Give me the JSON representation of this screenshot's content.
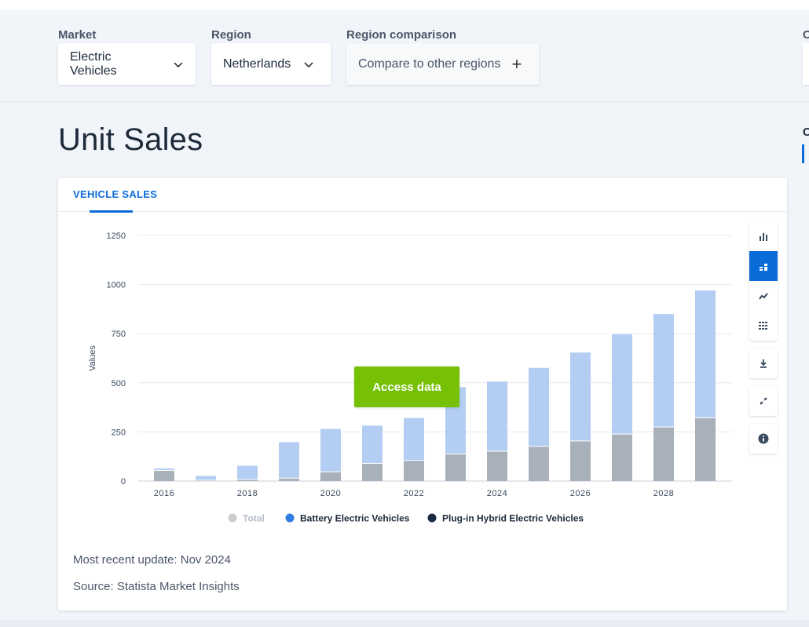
{
  "filters": {
    "market": {
      "label": "Market",
      "value": "Electric Vehicles"
    },
    "region": {
      "label": "Region",
      "value": "Netherlands"
    },
    "comparison": {
      "label": "Region comparison",
      "value": "Compare to other regions"
    },
    "cut_label": "C"
  },
  "page_title": "Unit Sales",
  "side_cut_label": "C",
  "card": {
    "tab_label": "VEHICLE SALES",
    "access_button": "Access data",
    "recent_update": "Most recent update: Nov 2024",
    "source": "Source: Statista Market Insights"
  },
  "toolbar": {
    "buttons": [
      {
        "icon": "bar-chart-icon"
      },
      {
        "icon": "stacked-bar-icon",
        "active": true
      },
      {
        "icon": "trend-line-icon"
      },
      {
        "icon": "table-icon"
      },
      {
        "icon": "download-icon"
      },
      {
        "icon": "expand-icon"
      },
      {
        "icon": "info-icon"
      }
    ]
  },
  "chart_data": {
    "type": "bar",
    "stacked": true,
    "ylabel": "Values",
    "xlabel": "",
    "ylim": [
      0,
      1250
    ],
    "yticks": [
      0,
      250,
      500,
      750,
      1000,
      1250
    ],
    "x": [
      2016,
      2017,
      2018,
      2019,
      2020,
      2021,
      2022,
      2023,
      2024,
      2025,
      2026,
      2027,
      2028,
      2029
    ],
    "xtick_labels": [
      "2016",
      "2018",
      "2020",
      "2022",
      "2024",
      "2026",
      "2028"
    ],
    "series": [
      {
        "name": "Total",
        "color": "#cccccc",
        "values": [
          64,
          26,
          78,
          198,
          265,
          282,
          321,
          478,
          506,
          576,
          654,
          747,
          850,
          970
        ]
      },
      {
        "name": "Battery Electric Vehicles",
        "color": "#2f7de1",
        "values": [
          10,
          22,
          70,
          183,
          218,
          192,
          216,
          340,
          354,
          400,
          450,
          508,
          575,
          648
        ]
      },
      {
        "name": "Plug-in Hybrid Electric Vehicles",
        "color": "#1a2a44",
        "values": [
          54,
          4,
          8,
          15,
          47,
          90,
          105,
          138,
          152,
          176,
          204,
          239,
          275,
          322
        ]
      }
    ],
    "legend_position": "bottom",
    "grid": true
  }
}
